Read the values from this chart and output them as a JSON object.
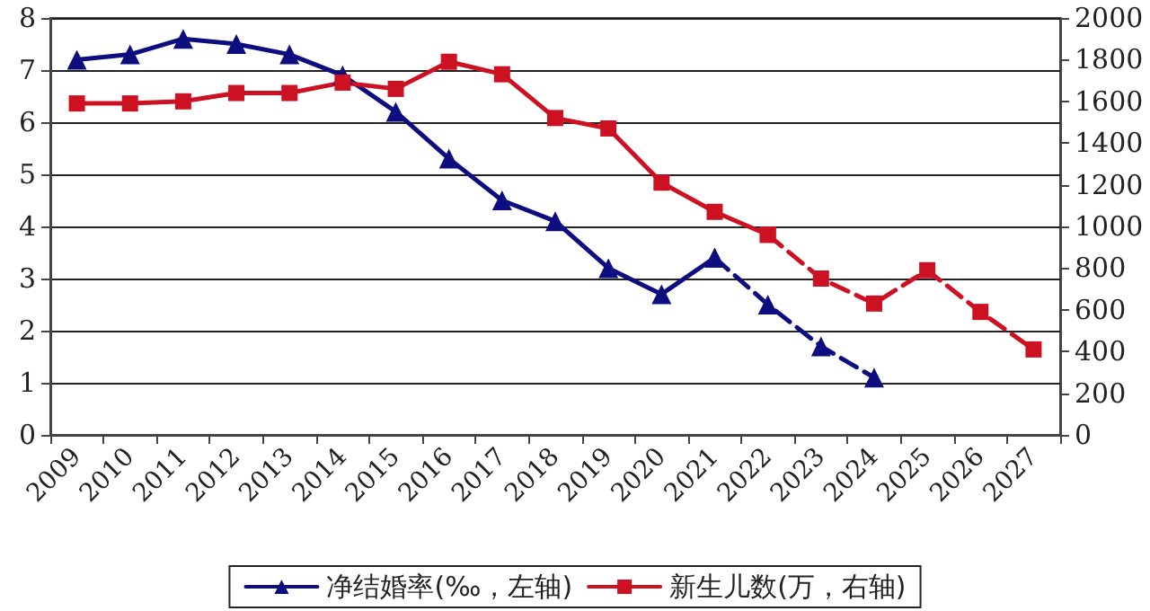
{
  "chart_data": {
    "type": "line",
    "categories": [
      "2009",
      "2010",
      "2011",
      "2012",
      "2013",
      "2014",
      "2015",
      "2016",
      "2017",
      "2018",
      "2019",
      "2020",
      "2021",
      "2022",
      "2023",
      "2024",
      "2025",
      "2026",
      "2027"
    ],
    "series": [
      {
        "name": "净结婚率(‰，左轴)",
        "color": "#0d0d80",
        "marker": "triangle",
        "line_style": "solid",
        "values": [
          7.2,
          7.3,
          7.6,
          7.5,
          7.3,
          6.9,
          6.2,
          5.3,
          4.5,
          4.1,
          3.2,
          2.7,
          3.4,
          null,
          null,
          null,
          null,
          null,
          null
        ]
      },
      {
        "color": "#0d0d80",
        "marker": "triangle",
        "line_style": "dashed",
        "values": [
          null,
          null,
          null,
          null,
          null,
          null,
          null,
          null,
          null,
          null,
          null,
          null,
          3.4,
          2.5,
          1.7,
          1.1,
          null,
          null,
          null
        ]
      },
      {
        "name": "新生儿数(万，右轴)",
        "color": "#cc1122",
        "marker": "square",
        "line_style": "solid",
        "axis": "y2",
        "values": [
          1590,
          1590,
          1600,
          1640,
          1640,
          1690,
          1660,
          1790,
          1730,
          1520,
          1470,
          1210,
          1070,
          960,
          null,
          null,
          null,
          null,
          null
        ]
      },
      {
        "color": "#cc1122",
        "marker": "square",
        "line_style": "dashed",
        "axis": "y2",
        "values": [
          null,
          null,
          null,
          null,
          null,
          null,
          null,
          null,
          null,
          null,
          null,
          null,
          null,
          960,
          750,
          630,
          790,
          590,
          410
        ]
      }
    ],
    "ylim": [
      0,
      8
    ],
    "yticks": [
      0,
      1,
      2,
      3,
      4,
      5,
      6,
      7,
      8
    ],
    "y2lim": [
      0,
      2000
    ],
    "y2ticks": [
      0,
      200,
      400,
      600,
      800,
      1000,
      1200,
      1400,
      1600,
      1800,
      2000
    ],
    "grid": "y",
    "legend": "bottom"
  }
}
